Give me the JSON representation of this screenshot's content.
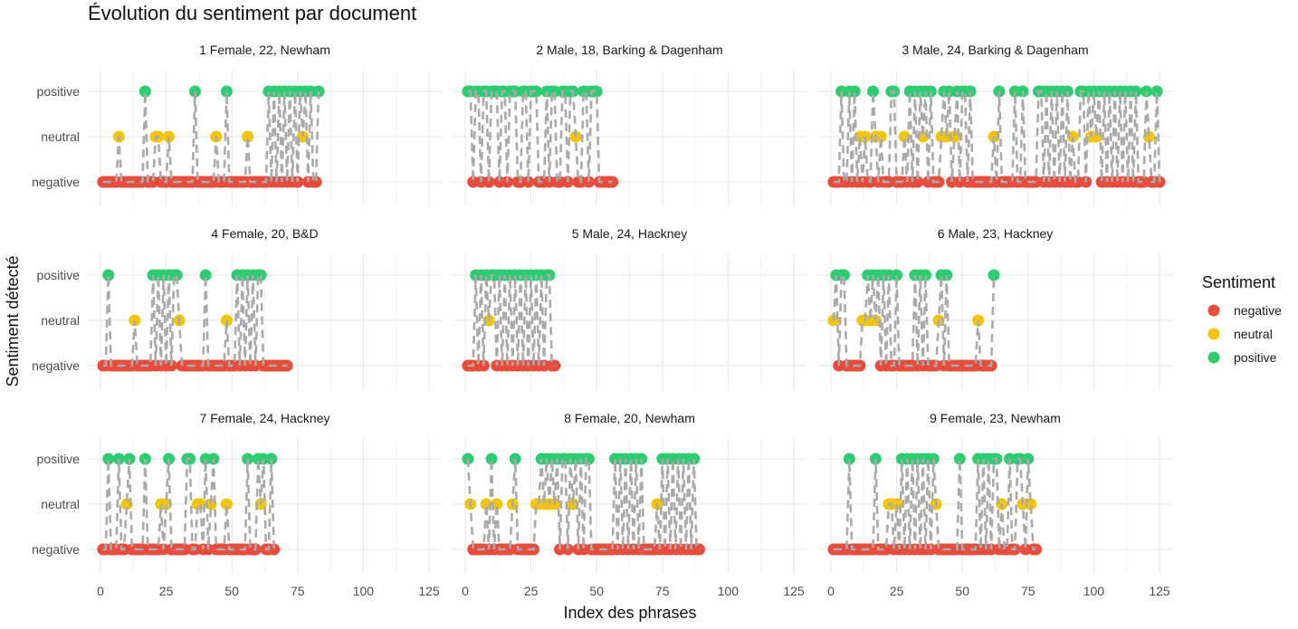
{
  "chart_data": {
    "type": "scatter",
    "title": "Évolution du sentiment par document",
    "xlabel": "Index des phrases",
    "ylabel": "Sentiment détecté",
    "xlim": [
      0,
      125
    ],
    "x_ticks": [
      "0",
      "25",
      "50",
      "75",
      "100",
      "125"
    ],
    "y_categories": [
      "negative",
      "neutral",
      "positive"
    ],
    "legend": {
      "title": "Sentiment",
      "position": "right",
      "entries": [
        "negative",
        "neutral",
        "positive"
      ]
    },
    "colors": {
      "negative": "#E74C3C",
      "neutral": "#F1C40F",
      "positive": "#2ECC71",
      "line": "#AAAAAA"
    },
    "grid": true,
    "panels": [
      {
        "label": "1 Female, 22, Newham",
        "n": 83,
        "positive": [
          17,
          36,
          48,
          64,
          66,
          68,
          70,
          72,
          74,
          76,
          78,
          80,
          83
        ],
        "neutral": [
          7,
          21,
          22,
          26,
          44,
          56,
          77
        ]
      },
      {
        "label": "2  Male, 18, Barking & Dagenham",
        "n": 56,
        "positive": [
          1,
          2,
          4,
          5,
          7,
          8,
          10,
          11,
          12,
          14,
          15,
          17,
          18,
          19,
          22,
          23,
          25,
          26,
          27,
          31,
          33,
          34,
          37,
          38,
          40,
          41,
          45,
          46,
          48,
          49,
          50
        ],
        "neutral": [
          42
        ]
      },
      {
        "label": "3  Male, 24, Barking & Dagenham",
        "n": 125,
        "positive": [
          4,
          7,
          9,
          16,
          23,
          24,
          30,
          32,
          34,
          36,
          38,
          43,
          45,
          48,
          50,
          51,
          53,
          64,
          70,
          73,
          79,
          80,
          82,
          84,
          86,
          88,
          90,
          95,
          96,
          98,
          100,
          102,
          104,
          106,
          108,
          110,
          112,
          114,
          116,
          120,
          124
        ],
        "neutral": [
          11,
          13,
          17,
          19,
          28,
          35,
          42,
          44,
          47,
          62,
          92,
          99,
          101,
          121
        ]
      },
      {
        "label": "4  Female, 20, B&D",
        "n": 71,
        "positive": [
          3,
          20,
          22,
          24,
          26,
          28,
          29,
          40,
          52,
          54,
          56,
          58,
          60,
          61
        ],
        "neutral": [
          13,
          30,
          48
        ]
      },
      {
        "label": "5  Male, 24, Hackney",
        "n": 34,
        "positive": [
          4,
          6,
          8,
          10,
          11,
          13,
          15,
          17,
          19,
          21,
          23,
          25,
          27,
          29,
          31,
          32
        ],
        "neutral": [
          9
        ]
      },
      {
        "label": "6  Male, 23, Hackney",
        "n": 62,
        "positive": [
          2,
          4,
          5,
          14,
          16,
          18,
          20,
          22,
          25,
          32,
          34,
          36,
          42,
          44,
          62
        ],
        "neutral": [
          1,
          12,
          13,
          15,
          17,
          41,
          56
        ]
      },
      {
        "label": "7  Female, 24, Hackney",
        "n": 66,
        "positive": [
          3,
          7,
          11,
          17,
          26,
          33,
          34,
          40,
          43,
          56,
          60,
          62,
          65
        ],
        "neutral": [
          10,
          23,
          25,
          37,
          38,
          42,
          48,
          61
        ]
      },
      {
        "label": "8  Female, 20, Newham",
        "n": 89,
        "positive": [
          1,
          10,
          19,
          29,
          31,
          33,
          35,
          37,
          38,
          40,
          42,
          44,
          46,
          47,
          57,
          59,
          61,
          63,
          65,
          67,
          75,
          77,
          79,
          81,
          83,
          85,
          87
        ],
        "neutral": [
          2,
          8,
          12,
          18,
          27,
          28,
          30,
          32,
          34,
          41,
          73
        ]
      },
      {
        "label": "9  Female, 23, Newham",
        "n": 78,
        "positive": [
          7,
          17,
          27,
          29,
          31,
          33,
          35,
          37,
          39,
          49,
          56,
          58,
          60,
          62,
          63,
          68,
          71,
          72,
          75
        ],
        "neutral": [
          22,
          23,
          25,
          40,
          65,
          73,
          76
        ]
      }
    ]
  }
}
